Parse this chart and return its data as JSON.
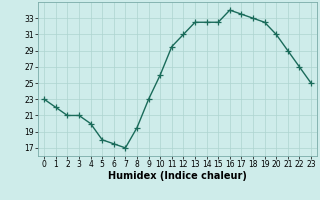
{
  "x": [
    0,
    1,
    2,
    3,
    4,
    5,
    6,
    7,
    8,
    9,
    10,
    11,
    12,
    13,
    14,
    15,
    16,
    17,
    18,
    19,
    20,
    21,
    22,
    23
  ],
  "y": [
    23,
    22,
    21,
    21,
    20,
    18,
    17.5,
    17,
    19.5,
    23,
    26,
    29.5,
    31,
    32.5,
    32.5,
    32.5,
    34,
    33.5,
    33,
    32.5,
    31,
    29,
    27,
    25
  ],
  "xlabel": "Humidex (Indice chaleur)",
  "xlim": [
    -0.5,
    23.5
  ],
  "ylim": [
    16,
    35
  ],
  "yticks": [
    17,
    19,
    21,
    23,
    25,
    27,
    29,
    31,
    33
  ],
  "xticks": [
    0,
    1,
    2,
    3,
    4,
    5,
    6,
    7,
    8,
    9,
    10,
    11,
    12,
    13,
    14,
    15,
    16,
    17,
    18,
    19,
    20,
    21,
    22,
    23
  ],
  "line_color": "#1a6b5a",
  "marker_color": "#1a6b5a",
  "bg_color": "#ceecea",
  "grid_color": "#aed4d0",
  "line_width": 1.0,
  "marker_size": 4.0
}
